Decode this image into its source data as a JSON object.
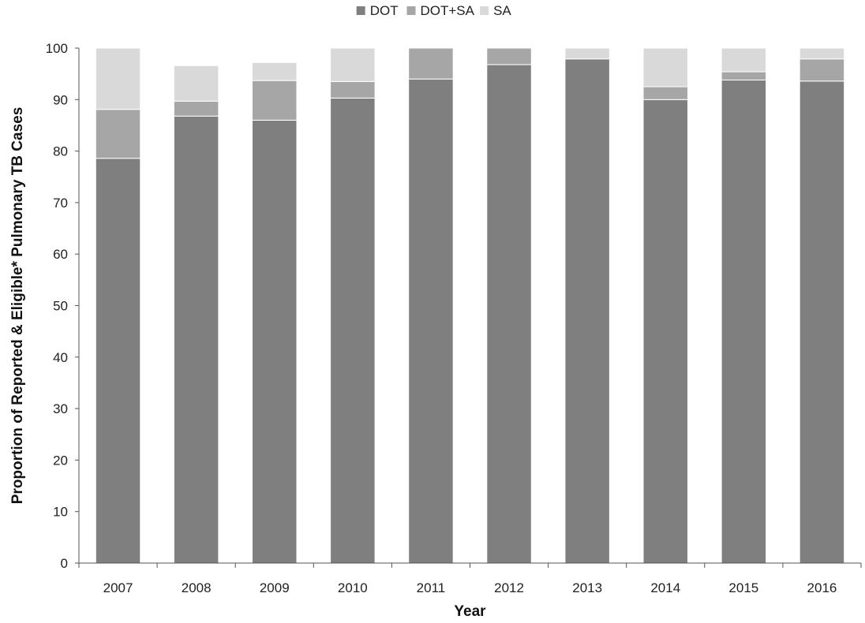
{
  "chart_data": {
    "type": "bar",
    "stacked": true,
    "title": "",
    "xlabel": "Year",
    "ylabel": "Proportion of Reported & Eligible* Pulmonary TB Cases",
    "ylim": [
      0,
      100
    ],
    "yticks": [
      0,
      10,
      20,
      30,
      40,
      50,
      60,
      70,
      80,
      90,
      100
    ],
    "grid": false,
    "legend_position": "top-center",
    "categories": [
      "2007",
      "2008",
      "2009",
      "2010",
      "2011",
      "2012",
      "2013",
      "2014",
      "2015",
      "2016"
    ],
    "series": [
      {
        "name": "DOT",
        "color": "#7f7f7f",
        "values": [
          78.6,
          86.8,
          86.0,
          90.3,
          94.0,
          96.8,
          97.9,
          90.0,
          93.8,
          93.6
        ]
      },
      {
        "name": "DOT+SA",
        "color": "#a6a6a6",
        "values": [
          9.5,
          2.9,
          7.7,
          3.2,
          6.0,
          3.2,
          0.0,
          2.5,
          1.6,
          4.3
        ]
      },
      {
        "name": "SA",
        "color": "#d9d9d9",
        "values": [
          11.9,
          6.9,
          3.5,
          6.5,
          0.0,
          0.0,
          2.1,
          7.5,
          4.6,
          2.1
        ]
      }
    ]
  }
}
